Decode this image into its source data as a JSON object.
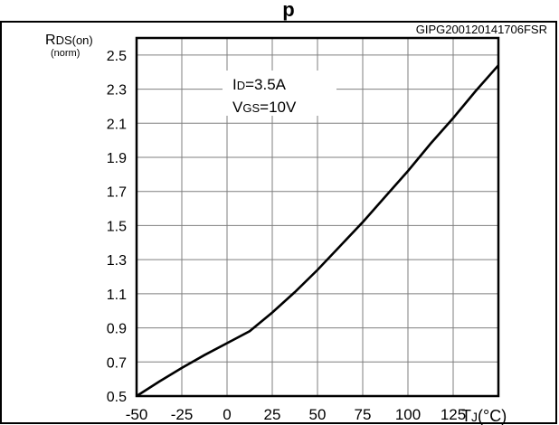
{
  "header": {
    "title_fragment": "p"
  },
  "chart_data": {
    "type": "line",
    "code": "GIPG200120141706FSR",
    "ylabel_main": "R",
    "ylabel_sub": "DS(on)",
    "ylabel_unit": "(norm)",
    "xlabel_main": "T",
    "xlabel_sub": "J",
    "xlabel_unit": "(°C)",
    "annotation": {
      "id_main": "I",
      "id_sub": "D",
      "id_val": "=3.5A",
      "vgs_main": "V",
      "vgs_sub": "GS",
      "vgs_val": "=10V"
    },
    "xlim": [
      -50,
      150
    ],
    "ylim": [
      0.5,
      2.6
    ],
    "x_ticks": [
      -50,
      -25,
      0,
      25,
      50,
      75,
      100,
      125
    ],
    "x_tick_labels": [
      "-50",
      "-25",
      "0",
      "25",
      "50",
      "75",
      "100",
      "125"
    ],
    "y_ticks": [
      0.5,
      0.7,
      0.9,
      1.1,
      1.3,
      1.5,
      1.7,
      1.9,
      2.1,
      2.3,
      2.5
    ],
    "y_tick_labels": [
      "0.5",
      "0.7",
      "0.9",
      "1.1",
      "1.3",
      "1.5",
      "1.7",
      "1.9",
      "2.1",
      "2.3",
      "2.5"
    ],
    "grid": true,
    "series": [
      {
        "x": [
          -50,
          -37.5,
          -25,
          -12.5,
          0,
          12.5,
          25,
          37.5,
          50,
          62.5,
          75,
          87.5,
          100,
          112.5,
          125,
          137.5,
          150
        ],
        "y": [
          0.5,
          0.585,
          0.665,
          0.74,
          0.81,
          0.88,
          0.99,
          1.11,
          1.24,
          1.38,
          1.52,
          1.67,
          1.82,
          1.98,
          2.13,
          2.29,
          2.44
        ]
      }
    ]
  }
}
